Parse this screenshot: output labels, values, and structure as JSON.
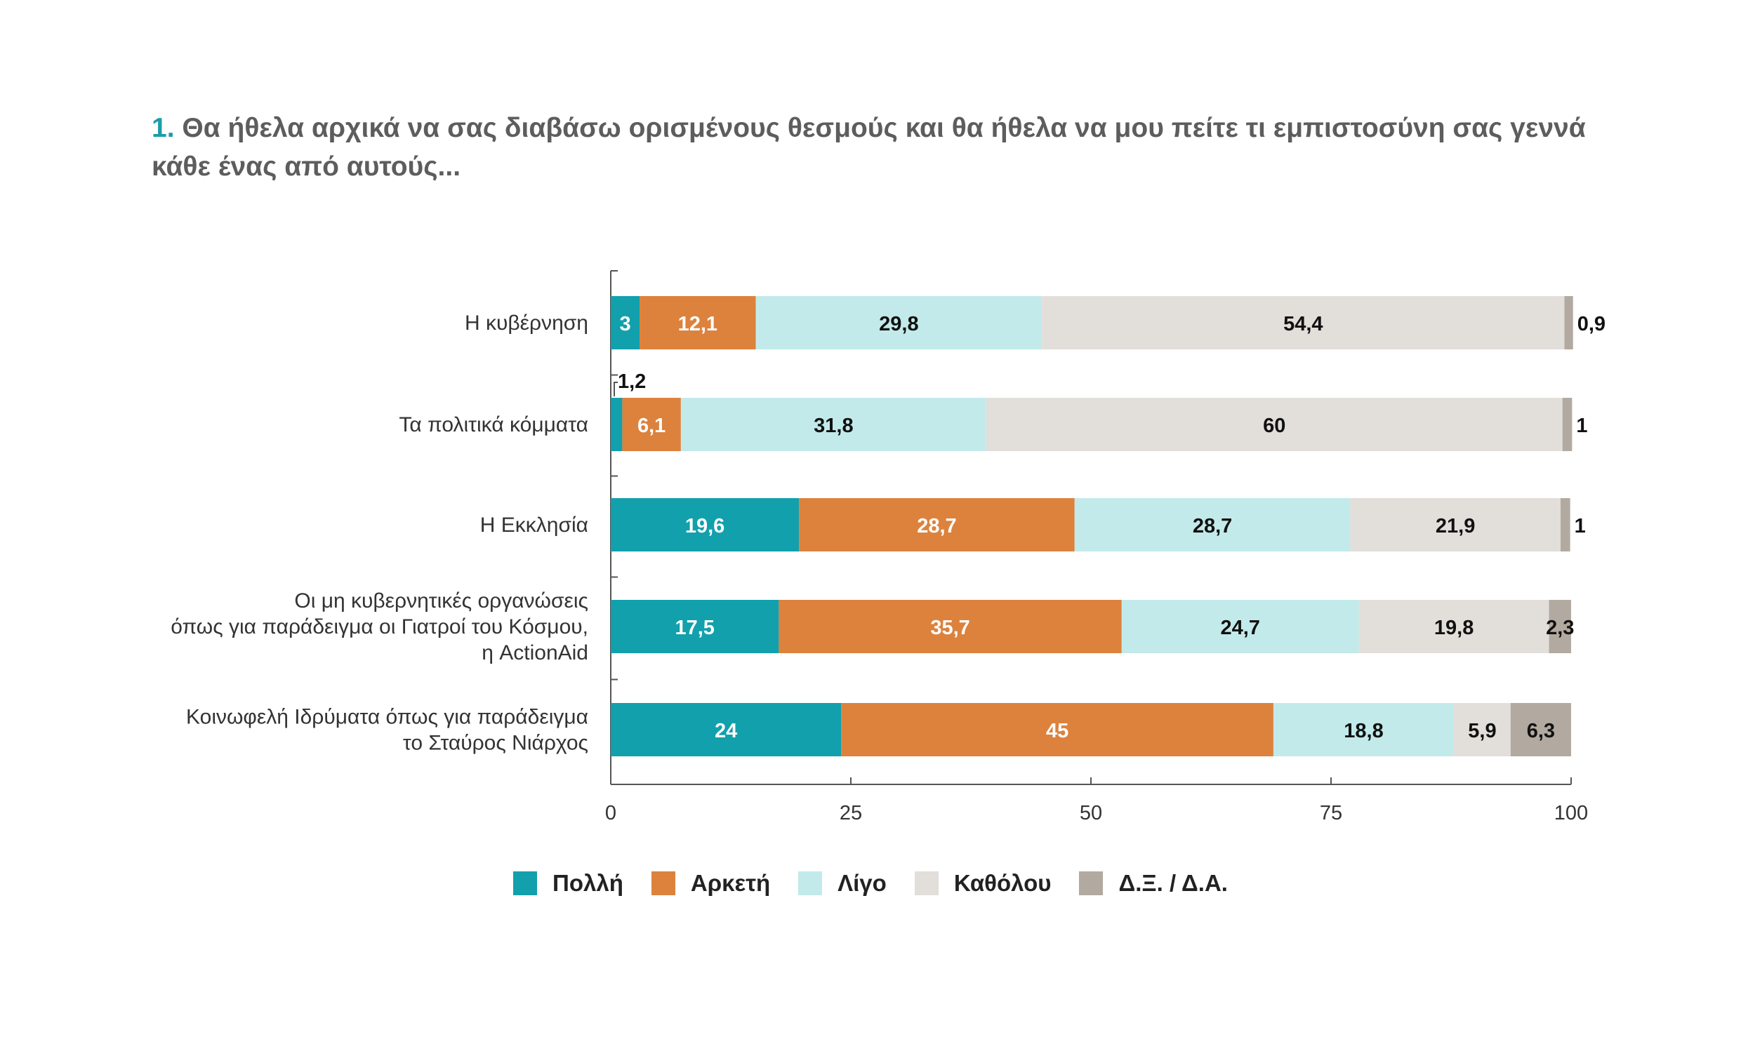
{
  "title": {
    "number": "1.",
    "text": "Θα ήθελα αρχικά να σας διαβάσω ορισμένους θεσμούς και θα ήθελα να μου πείτε τι εμπιστοσύνη σας γεννά κάθε ένας από αυτούς..."
  },
  "chart_data": {
    "type": "bar",
    "orientation": "horizontal",
    "stacked": true,
    "categories": [
      [
        "Η κυβέρνηση"
      ],
      [
        "Τα πολιτικά κόμματα"
      ],
      [
        "Η  Εκκλησία"
      ],
      [
        "Οι μη κυβερνητικές οργανώσεις",
        "όπως για παράδειγμα οι Γιατροί του Κόσμου,",
        "η ActionAid"
      ],
      [
        "Κοινωφελή Ιδρύματα όπως για παράδειγμα",
        "το Σταύρος Νιάρχος"
      ]
    ],
    "series": [
      {
        "name": "Πολλή",
        "color": "#12a0ac",
        "label_color": "#ffffff",
        "values": [
          3,
          1.2,
          19.6,
          17.5,
          24
        ],
        "labels": [
          "3",
          "1,2",
          "19,6",
          "17,5",
          "24"
        ]
      },
      {
        "name": "Αρκετή",
        "color": "#dc823d",
        "label_color": "#ffffff",
        "values": [
          12.1,
          6.1,
          28.7,
          35.7,
          45
        ],
        "labels": [
          "12,1",
          "6,1",
          "28,7",
          "35,7",
          "45"
        ]
      },
      {
        "name": "Λίγο",
        "color": "#c3eaea",
        "label_color": "#111111",
        "values": [
          29.8,
          31.8,
          28.7,
          24.7,
          18.8
        ],
        "labels": [
          "29,8",
          "31,8",
          "28,7",
          "24,7",
          "18,8"
        ]
      },
      {
        "name": "Καθόλου",
        "color": "#e2deda",
        "label_color": "#111111",
        "values": [
          54.4,
          60,
          21.9,
          19.8,
          5.9
        ],
        "labels": [
          "54,4",
          "60",
          "21,9",
          "19,8",
          "5,9"
        ]
      },
      {
        "name": "Δ.Ξ. / Δ.Α.",
        "color": "#b2aaa0",
        "label_color": "#111111",
        "values": [
          0.9,
          1,
          1,
          2.3,
          6.3
        ],
        "labels": [
          "0,9",
          "1",
          "1",
          "2,3",
          "6,3"
        ]
      }
    ],
    "xlim": [
      0,
      100
    ],
    "xticks": [
      "0",
      "25",
      "50",
      "75",
      "100"
    ],
    "grid": false,
    "legend_position": "bottom"
  }
}
